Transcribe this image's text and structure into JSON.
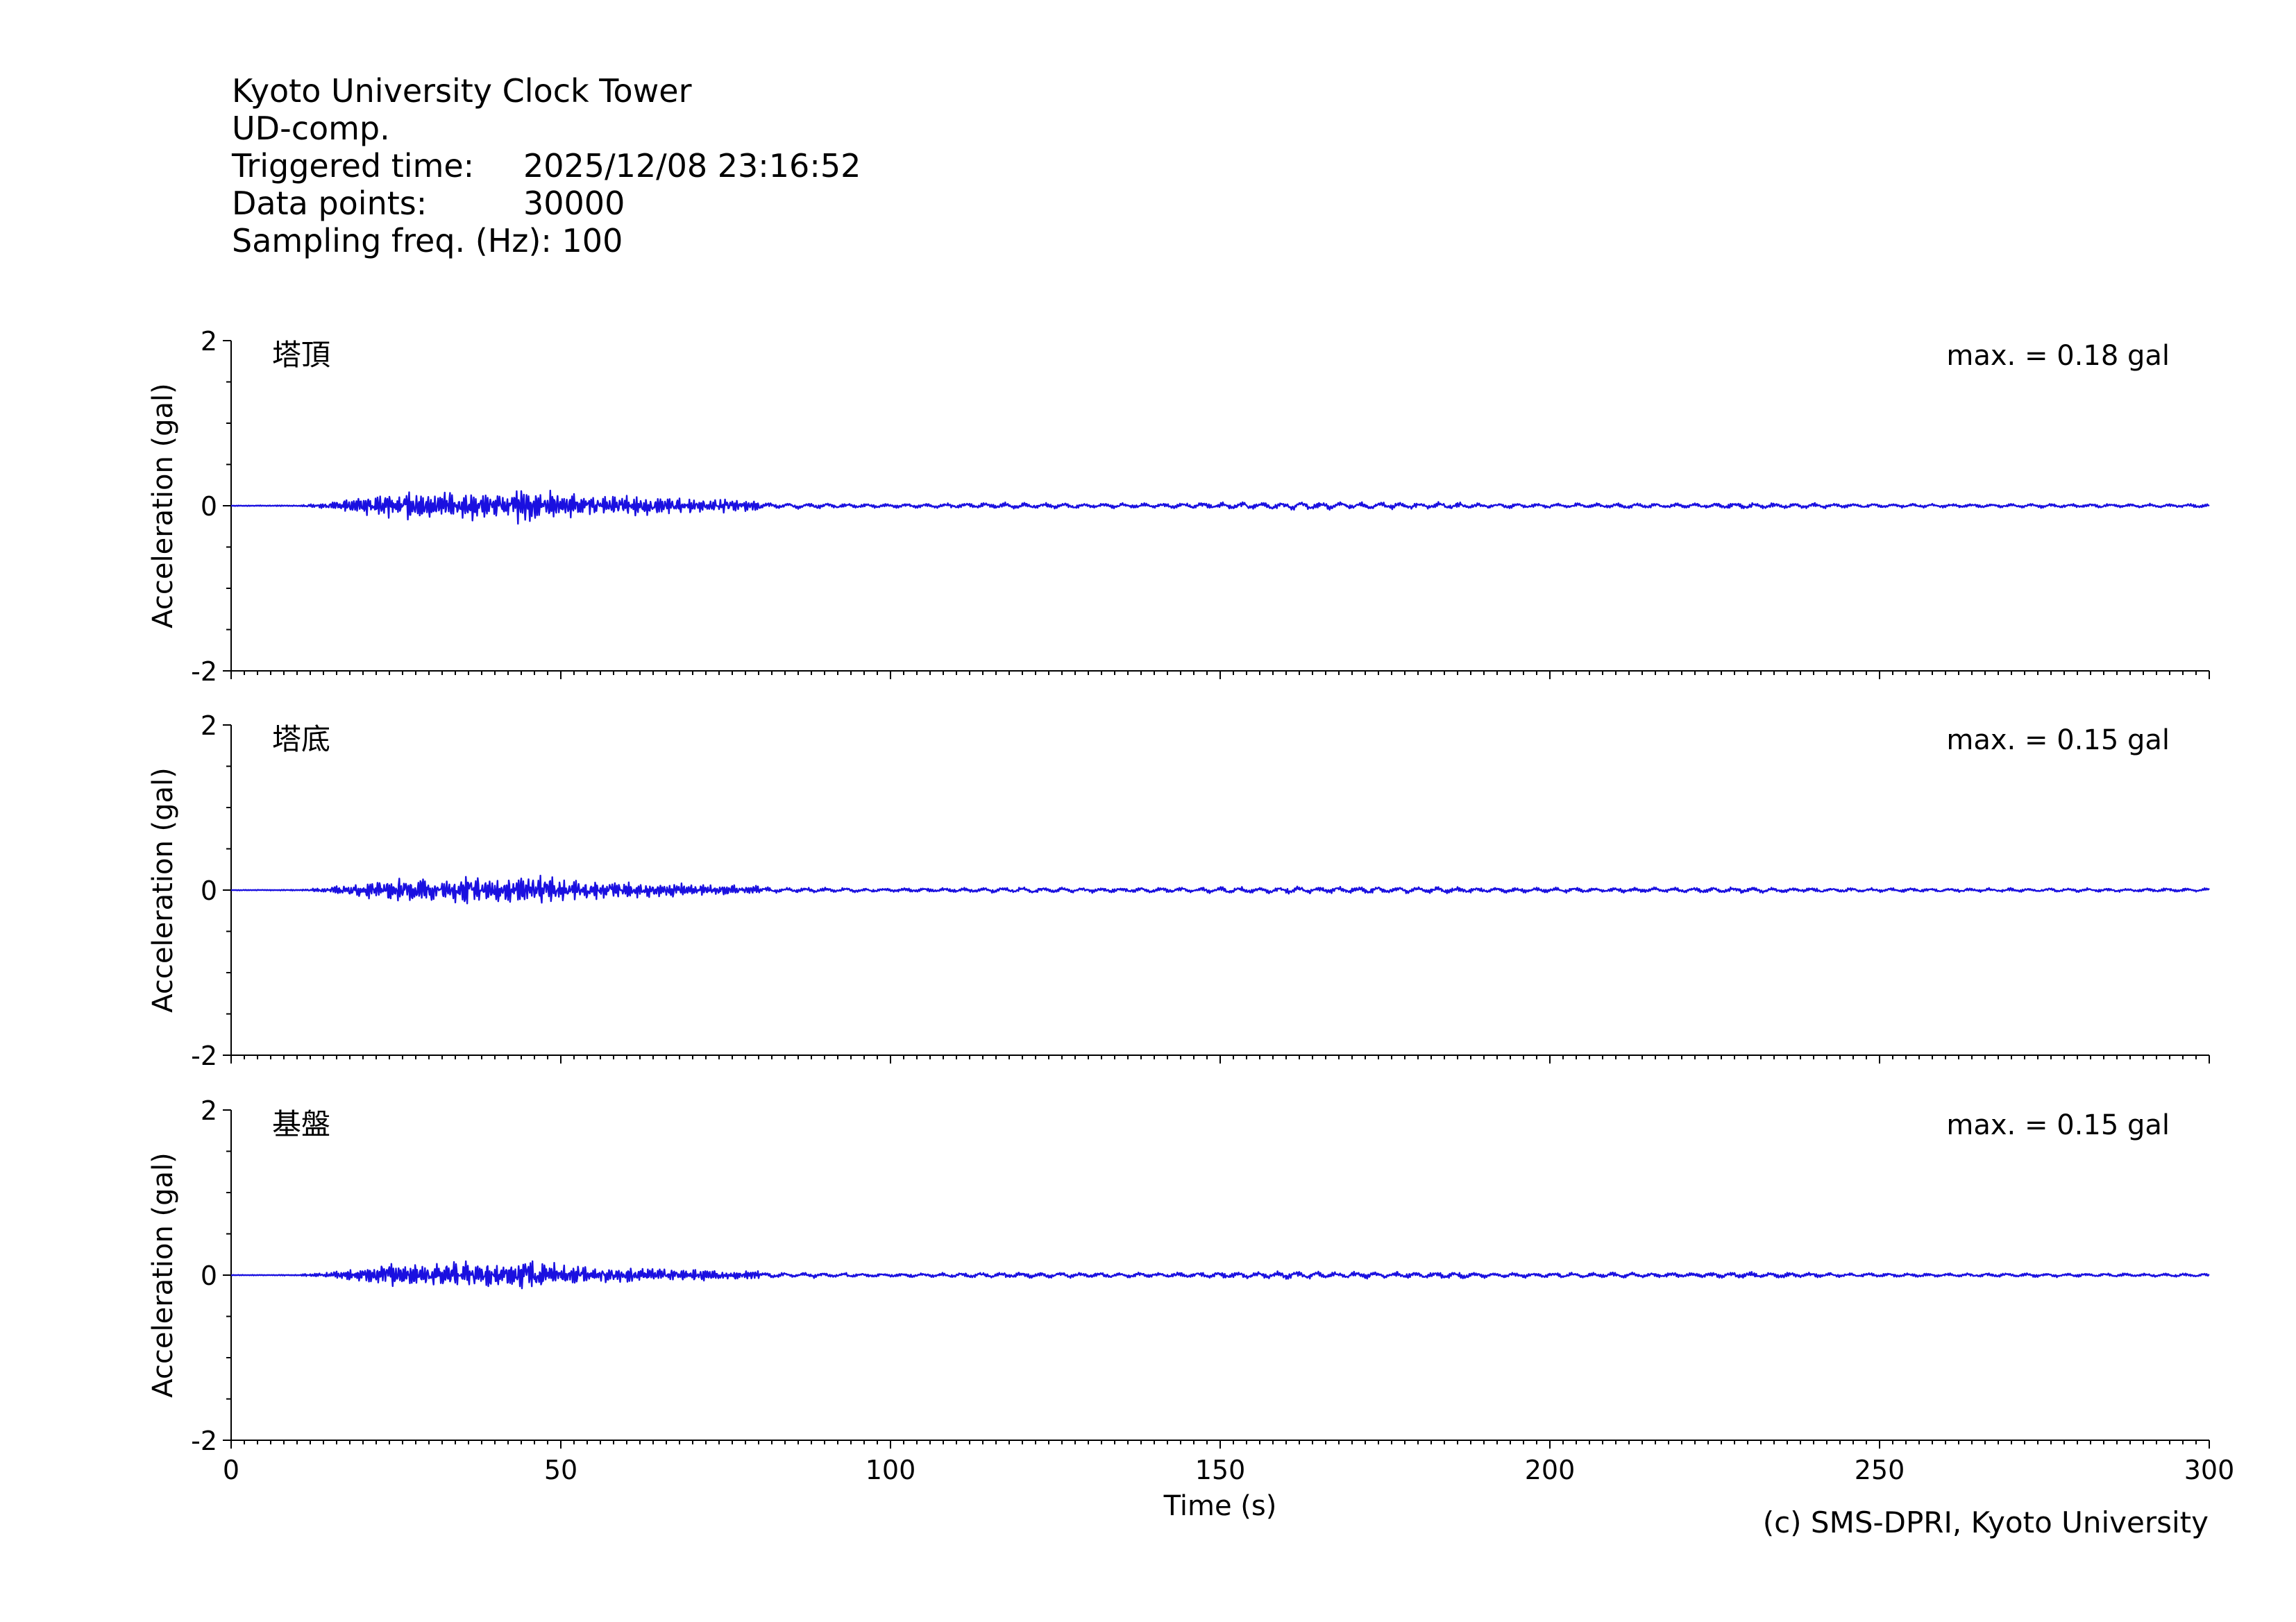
{
  "header": {
    "title": "Kyoto University Clock Tower",
    "component": "UD-comp.",
    "triggered_label": "Triggered time:",
    "triggered_value": "2025/12/08 23:16:52",
    "points_label": "Data points:",
    "points_value": "30000",
    "freq_label": "Sampling freq. (Hz):",
    "freq_value": "100"
  },
  "footer": {
    "credit": "(c) SMS-DPRI, Kyoto University"
  },
  "colors": {
    "trace": "#1a10e0",
    "axis": "#000000"
  },
  "chart_data": [
    {
      "type": "line",
      "panel": "塔頂",
      "annotation": "max. = 0.18 gal",
      "ylabel": "Acceleration (gal)",
      "xlabel": "",
      "xlim": [
        0,
        300
      ],
      "ylim": [
        -2,
        2
      ],
      "yticks": [
        -2,
        0,
        2
      ],
      "xticks": [
        0,
        50,
        100,
        150,
        200,
        250,
        300
      ],
      "envelope": {
        "x": [
          0,
          10,
          15,
          20,
          25,
          30,
          35,
          40,
          45,
          50,
          60,
          70,
          80,
          90,
          100,
          110,
          120,
          130,
          140,
          150,
          160,
          170,
          175,
          180,
          185,
          190,
          200,
          210,
          220,
          230,
          240,
          250,
          260,
          270,
          280,
          290,
          300
        ],
        "amp": [
          0.003,
          0.005,
          0.03,
          0.09,
          0.13,
          0.12,
          0.15,
          0.11,
          0.18,
          0.12,
          0.09,
          0.07,
          0.05,
          0.04,
          0.03,
          0.04,
          0.05,
          0.04,
          0.04,
          0.05,
          0.07,
          0.05,
          0.06,
          0.05,
          0.06,
          0.04,
          0.04,
          0.04,
          0.04,
          0.05,
          0.04,
          0.03,
          0.03,
          0.03,
          0.03,
          0.03,
          0.03
        ]
      }
    },
    {
      "type": "line",
      "panel": "塔底",
      "annotation": "max. = 0.15 gal",
      "ylabel": "Acceleration (gal)",
      "xlabel": "",
      "xlim": [
        0,
        300
      ],
      "ylim": [
        -2,
        2
      ],
      "yticks": [
        -2,
        0,
        2
      ],
      "xticks": [
        0,
        50,
        100,
        150,
        200,
        250,
        300
      ],
      "envelope": {
        "x": [
          0,
          10,
          15,
          20,
          25,
          30,
          35,
          40,
          45,
          50,
          60,
          70,
          80,
          90,
          100,
          110,
          120,
          130,
          140,
          150,
          160,
          170,
          175,
          180,
          185,
          190,
          200,
          210,
          220,
          230,
          240,
          250,
          260,
          270,
          280,
          290,
          300
        ],
        "amp": [
          0.003,
          0.005,
          0.03,
          0.07,
          0.11,
          0.1,
          0.13,
          0.1,
          0.15,
          0.1,
          0.07,
          0.06,
          0.04,
          0.04,
          0.03,
          0.04,
          0.05,
          0.04,
          0.04,
          0.05,
          0.06,
          0.05,
          0.06,
          0.05,
          0.05,
          0.04,
          0.04,
          0.04,
          0.04,
          0.05,
          0.04,
          0.03,
          0.03,
          0.03,
          0.03,
          0.03,
          0.03
        ]
      }
    },
    {
      "type": "line",
      "panel": "基盤",
      "annotation": "max. = 0.15 gal",
      "ylabel": "Acceleration (gal)",
      "xlabel": "Time (s)",
      "xlim": [
        0,
        300
      ],
      "ylim": [
        -2,
        2
      ],
      "yticks": [
        -2,
        0,
        2
      ],
      "xticks": [
        0,
        50,
        100,
        150,
        200,
        250,
        300
      ],
      "envelope": {
        "x": [
          0,
          10,
          15,
          20,
          25,
          30,
          35,
          40,
          45,
          50,
          60,
          70,
          80,
          90,
          100,
          110,
          120,
          130,
          140,
          150,
          160,
          170,
          175,
          180,
          185,
          190,
          200,
          210,
          220,
          230,
          240,
          250,
          260,
          270,
          280,
          290,
          300
        ],
        "amp": [
          0.003,
          0.005,
          0.03,
          0.07,
          0.11,
          0.1,
          0.14,
          0.1,
          0.15,
          0.1,
          0.07,
          0.05,
          0.04,
          0.04,
          0.03,
          0.04,
          0.05,
          0.04,
          0.04,
          0.05,
          0.06,
          0.05,
          0.06,
          0.05,
          0.06,
          0.04,
          0.04,
          0.04,
          0.04,
          0.05,
          0.04,
          0.03,
          0.03,
          0.03,
          0.03,
          0.03,
          0.03
        ]
      }
    }
  ]
}
